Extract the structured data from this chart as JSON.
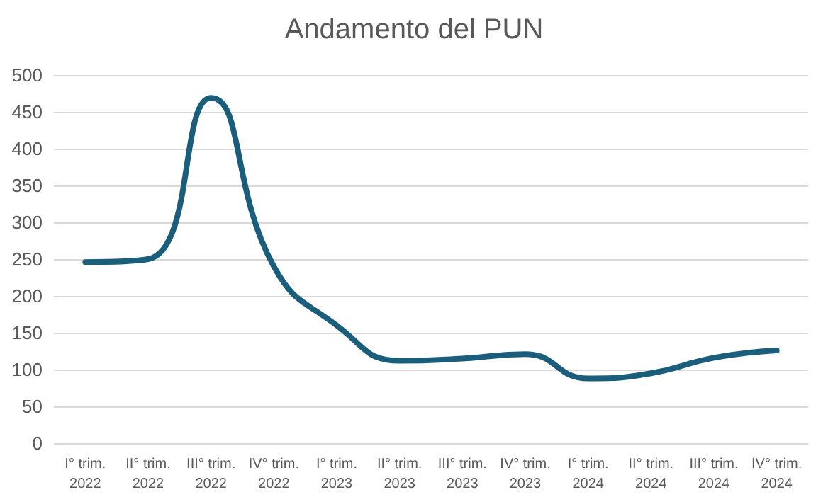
{
  "chart_data": {
    "type": "line",
    "title": "Andamento del PUN",
    "categories": [
      "I° trim.\n2022",
      "II° trim.\n2022",
      "III° trim.\n2022",
      "IV° trim.\n2022",
      "I° trim.\n2023",
      "II° trim.\n2023",
      "III° trim.\n2023",
      "IV° trim.\n2023",
      "I° trim.\n2024",
      "II° trim.\n2024",
      "III° trim.\n2024",
      "IV° trim.\n2024"
    ],
    "series": [
      {
        "color": "#1b5e7b",
        "values": [
          246,
          250,
          469,
          240,
          160,
          112,
          115,
          121,
          88,
          95,
          116,
          126
        ]
      }
    ],
    "ylim": [
      0,
      500
    ],
    "yticks": [
      0,
      50,
      100,
      150,
      200,
      250,
      300,
      350,
      400,
      450,
      500
    ],
    "grid": "y",
    "marker": "none",
    "line_style": "solid"
  }
}
